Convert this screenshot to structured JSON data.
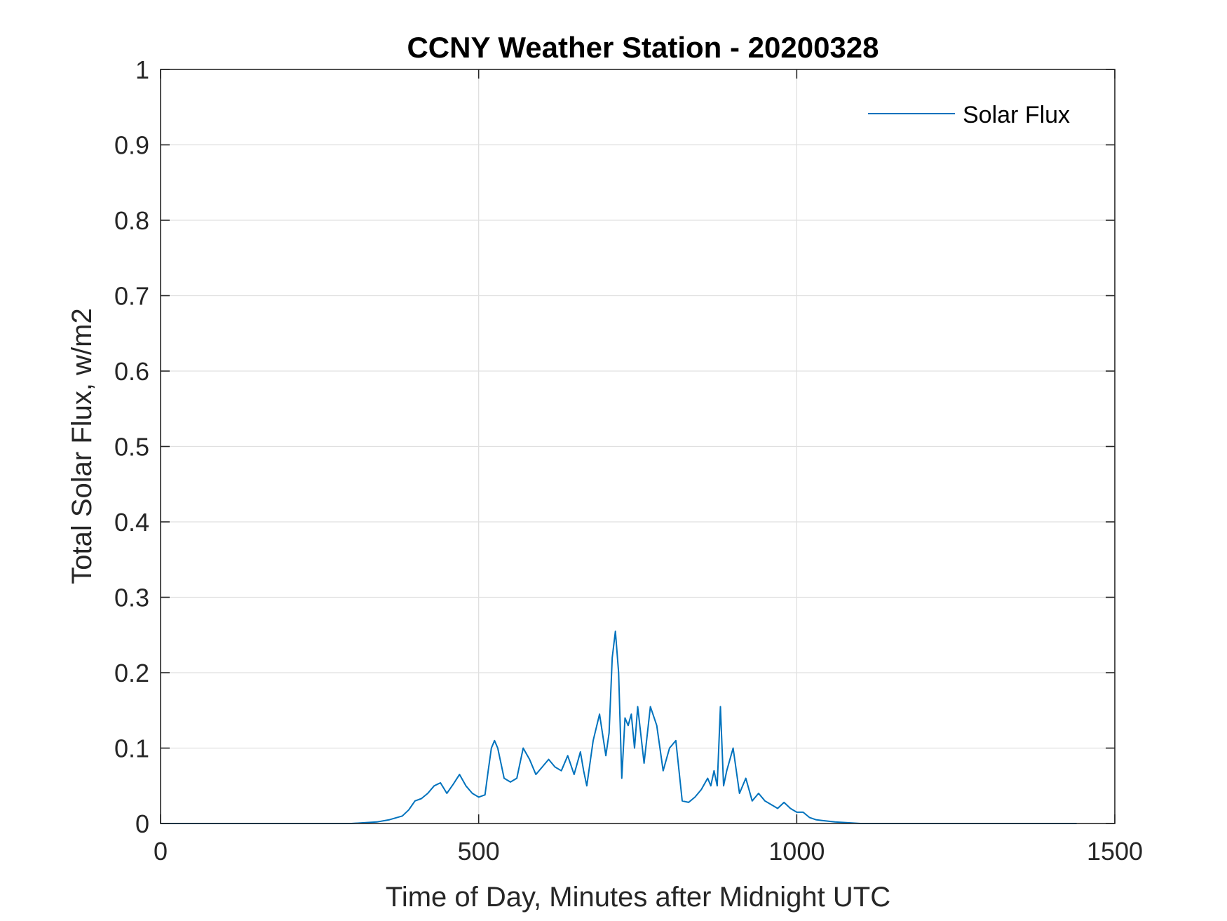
{
  "chart_data": {
    "type": "line",
    "title": "CCNY Weather Station - 20200328",
    "xlabel": "Time of Day, Minutes after Midnight UTC",
    "ylabel": "Total Solar Flux, w/m2",
    "xlim": [
      0,
      1500
    ],
    "ylim": [
      0,
      1
    ],
    "xticks": [
      0,
      500,
      1000,
      1500
    ],
    "xtick_labels": [
      "0",
      "500",
      "1000",
      "1500"
    ],
    "yticks": [
      0,
      0.1,
      0.2,
      0.3,
      0.4,
      0.5,
      0.6,
      0.7,
      0.8,
      0.9,
      1
    ],
    "ytick_labels": [
      "0",
      "0.1",
      "0.2",
      "0.3",
      "0.4",
      "0.5",
      "0.6",
      "0.7",
      "0.8",
      "0.9",
      "1"
    ],
    "grid": true,
    "legend_location": "top-right",
    "colors": {
      "series": "#0072BD",
      "axis": "#262626",
      "grid": "#e0e0e0"
    },
    "series": [
      {
        "name": "Solar Flux",
        "x": [
          0,
          100,
          200,
          300,
          340,
          360,
          380,
          390,
          400,
          410,
          420,
          430,
          440,
          450,
          460,
          470,
          480,
          490,
          500,
          510,
          515,
          520,
          525,
          530,
          540,
          550,
          560,
          570,
          580,
          590,
          600,
          610,
          620,
          630,
          640,
          650,
          660,
          665,
          670,
          680,
          690,
          700,
          705,
          710,
          715,
          720,
          725,
          730,
          735,
          740,
          745,
          750,
          760,
          770,
          780,
          790,
          800,
          810,
          820,
          830,
          840,
          850,
          860,
          865,
          870,
          875,
          880,
          885,
          890,
          900,
          910,
          920,
          930,
          940,
          950,
          960,
          970,
          980,
          990,
          1000,
          1010,
          1020,
          1030,
          1040,
          1050,
          1060,
          1080,
          1100,
          1200,
          1300,
          1440
        ],
        "values": [
          0,
          0,
          0,
          0,
          0.002,
          0.005,
          0.01,
          0.018,
          0.03,
          0.033,
          0.04,
          0.05,
          0.054,
          0.04,
          0.052,
          0.065,
          0.05,
          0.04,
          0.035,
          0.038,
          0.07,
          0.1,
          0.11,
          0.1,
          0.06,
          0.055,
          0.06,
          0.1,
          0.085,
          0.065,
          0.075,
          0.085,
          0.075,
          0.07,
          0.09,
          0.065,
          0.095,
          0.07,
          0.05,
          0.11,
          0.145,
          0.09,
          0.12,
          0.22,
          0.255,
          0.2,
          0.06,
          0.14,
          0.13,
          0.145,
          0.1,
          0.155,
          0.08,
          0.155,
          0.13,
          0.07,
          0.1,
          0.11,
          0.03,
          0.028,
          0.035,
          0.045,
          0.06,
          0.05,
          0.07,
          0.05,
          0.155,
          0.05,
          0.07,
          0.1,
          0.04,
          0.06,
          0.03,
          0.04,
          0.03,
          0.025,
          0.02,
          0.028,
          0.02,
          0.015,
          0.015,
          0.008,
          0.005,
          0.004,
          0.003,
          0.002,
          0.001,
          0,
          0,
          0,
          0
        ]
      }
    ]
  }
}
